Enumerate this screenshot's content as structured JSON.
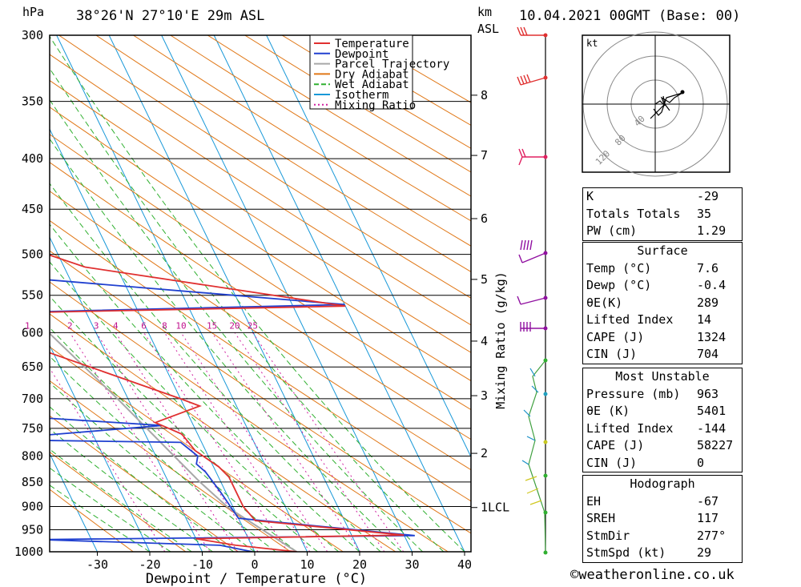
{
  "header": {
    "pressure_unit": "hPa",
    "location": "38°26'N  27°10'E  29m  ASL",
    "km_label": "km",
    "asl_label": "ASL",
    "datetime": "10.04.2021  00GMT  (Base: 00)"
  },
  "chart_data": {
    "type": "skew-t log-p sounding",
    "xlabel": "Dewpoint / Temperature (°C)",
    "ylabel": "hPa",
    "xlim": [
      -40,
      40
    ],
    "ylim_hpa": [
      1000,
      300
    ],
    "pressure_ticks": [
      300,
      350,
      400,
      450,
      500,
      550,
      600,
      650,
      700,
      750,
      800,
      850,
      900,
      950,
      1000
    ],
    "temp_ticks": [
      -30,
      -20,
      -10,
      0,
      10,
      20,
      30,
      40
    ],
    "km_ticks": [
      {
        "km": "8",
        "p": 345
      },
      {
        "km": "7",
        "p": 397
      },
      {
        "km": "6",
        "p": 460
      },
      {
        "km": "5",
        "p": 530
      },
      {
        "km": "4",
        "p": 612
      },
      {
        "km": "3",
        "p": 695
      },
      {
        "km": "2",
        "p": 795
      },
      {
        "km": "1LCL",
        "p": 902
      }
    ],
    "mixing_ratio_label": "Mixing Ratio (g/kg)",
    "mixing_ratio_values": [
      "1",
      "2",
      "3",
      "4",
      "6",
      "8",
      "10",
      "15",
      "20",
      "25"
    ],
    "legend": [
      {
        "label": "Temperature",
        "color": "#e03030"
      },
      {
        "label": "Dewpoint",
        "color": "#2040d0"
      },
      {
        "label": "Parcel Trajectory",
        "color": "#a8a8a8"
      },
      {
        "label": "Dry Adiabat",
        "color": "#e07818"
      },
      {
        "label": "Wet Adiabat",
        "color": "#30b030"
      },
      {
        "label": "Isotherm",
        "color": "#1898d8"
      },
      {
        "label": "Mixing Ratio",
        "color": "#d020a0"
      }
    ],
    "temperature_profile": [
      {
        "p": 1000,
        "t": 8
      },
      {
        "p": 985,
        "t": -3
      },
      {
        "p": 970,
        "t": -10
      },
      {
        "p": 962,
        "t": 30
      },
      {
        "p": 930,
        "t": 3
      },
      {
        "p": 900,
        "t": 2
      },
      {
        "p": 860,
        "t": 2
      },
      {
        "p": 840,
        "t": 2
      },
      {
        "p": 820,
        "t": 1
      },
      {
        "p": 810,
        "t": 0
      },
      {
        "p": 790,
        "t": -2
      },
      {
        "p": 760,
        "t": -3
      },
      {
        "p": 740,
        "t": -7
      },
      {
        "p": 712,
        "t": 3
      },
      {
        "p": 700,
        "t": 0
      },
      {
        "p": 575,
        "t": -38
      },
      {
        "p": 564,
        "t": 40
      },
      {
        "p": 515,
        "t": -6
      },
      {
        "p": 500,
        "t": -12
      },
      {
        "p": 450,
        "t": -10
      },
      {
        "p": 400,
        "t": -28
      },
      {
        "p": 380,
        "t": -28
      },
      {
        "p": 315,
        "t": -35
      },
      {
        "p": 300,
        "t": -43
      }
    ],
    "dewpoint_profile": [
      {
        "p": 1000,
        "t": -0.4
      },
      {
        "p": 985,
        "t": -6
      },
      {
        "p": 972,
        "t": -40
      },
      {
        "p": 963,
        "t": 32
      },
      {
        "p": 925,
        "t": 0
      },
      {
        "p": 870,
        "t": -1
      },
      {
        "p": 830,
        "t": -2
      },
      {
        "p": 815,
        "t": -3
      },
      {
        "p": 800,
        "t": -2
      },
      {
        "p": 775,
        "t": -4
      },
      {
        "p": 770,
        "t": -40
      },
      {
        "p": 745,
        "t": -6
      },
      {
        "p": 725,
        "t": -40
      },
      {
        "p": 700,
        "t": -38
      },
      {
        "p": 650,
        "t": -42
      },
      {
        "p": 575,
        "t": -40
      },
      {
        "p": 562,
        "t": 40
      },
      {
        "p": 520,
        "t": -33
      },
      {
        "p": 500,
        "t": -38
      },
      {
        "p": 430,
        "t": -52
      },
      {
        "p": 400,
        "t": -49
      },
      {
        "p": 375,
        "t": -37
      },
      {
        "p": 315,
        "t": -60
      },
      {
        "p": 300,
        "t": -63
      }
    ],
    "parcel_profile": [
      {
        "p": 1000,
        "t": 8
      },
      {
        "p": 950,
        "t": 3.5
      },
      {
        "p": 902,
        "t": -1
      },
      {
        "p": 850,
        "t": -4
      },
      {
        "p": 800,
        "t": -6.5
      },
      {
        "p": 700,
        "t": -12
      },
      {
        "p": 600,
        "t": -19
      },
      {
        "p": 500,
        "t": -29
      },
      {
        "p": 400,
        "t": -42
      },
      {
        "p": 300,
        "t": -60
      }
    ]
  },
  "hodograph": {
    "unit_label": "kt",
    "ring_labels": [
      "40",
      "80",
      "120"
    ]
  },
  "indices": {
    "k_label": "K",
    "k": "-29",
    "tt_label": "Totals Totals",
    "tt": "35",
    "pw_label": "PW (cm)",
    "pw": "1.29"
  },
  "surface": {
    "title": "Surface",
    "temp_label": "Temp (°C)",
    "temp": "7.6",
    "dewp_label": "Dewp (°C)",
    "dewp": "-0.4",
    "theta_label": "θE(K)",
    "theta": "289",
    "li_label": "Lifted Index",
    "li": "14",
    "cape_label": "CAPE (J)",
    "cape": "1324",
    "cin_label": "CIN (J)",
    "cin": "704"
  },
  "most_unstable": {
    "title": "Most Unstable",
    "pressure_label": "Pressure (mb)",
    "pressure": "963",
    "theta_label": "θE (K)",
    "theta": "5401",
    "li_label": "Lifted Index",
    "li": "-144",
    "cape_label": "CAPE (J)",
    "cape": "58227",
    "cin_label": "CIN (J)",
    "cin": "0"
  },
  "hodograph_params": {
    "title": "Hodograph",
    "eh_label": "EH",
    "eh": "-67",
    "sreh_label": "SREH",
    "sreh": "117",
    "stmdir_label": "StmDir",
    "stmdir": "277°",
    "stmspd_label": "StmSpd (kt)",
    "stmspd": "29"
  },
  "credit": "©weatheronline.co.uk"
}
